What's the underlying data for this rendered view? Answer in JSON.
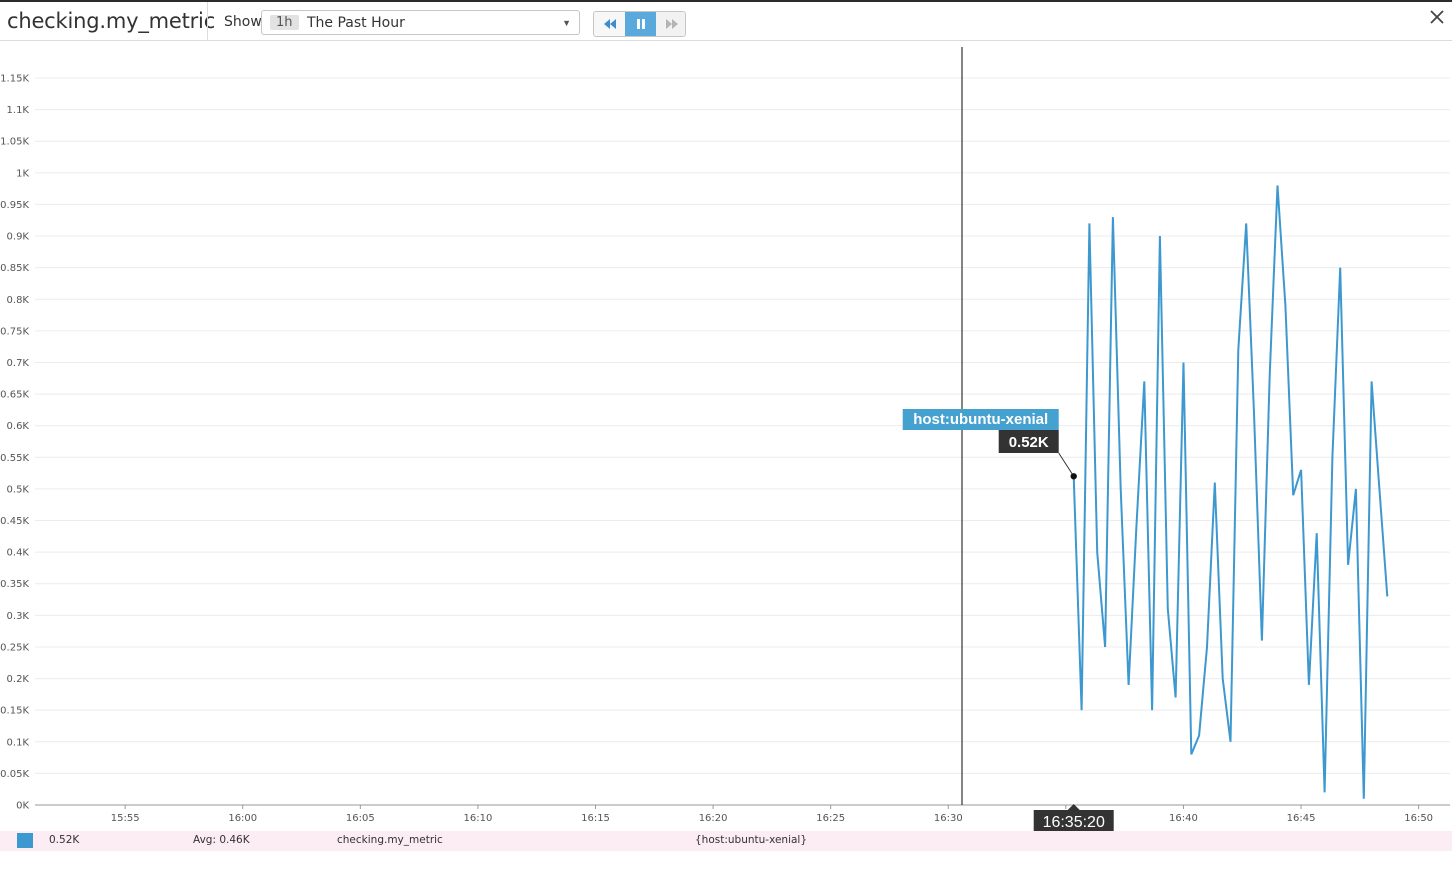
{
  "header": {
    "title": "checking.my_metric",
    "show_label": "Show",
    "range_badge": "1h",
    "range_text": "The Past Hour"
  },
  "icons": {
    "rewind": "rewind-icon",
    "pause": "pause-icon",
    "forward": "fast-forward-icon",
    "close": "close-icon"
  },
  "colors": {
    "series": "#3d98cf",
    "accent": "#5aa9dc",
    "tooltip_host_bg": "#45a1cf",
    "tooltip_value_bg": "#333333",
    "legend_bg": "#fcecf3"
  },
  "chart_data": {
    "type": "line",
    "title": "checking.my_metric",
    "ylim": [
      0,
      1.15
    ],
    "y_ticks": [
      {
        "v": 0,
        "label": "0K"
      },
      {
        "v": 0.05,
        "label": "0.05K"
      },
      {
        "v": 0.1,
        "label": "0.1K"
      },
      {
        "v": 0.15,
        "label": "0.15K"
      },
      {
        "v": 0.2,
        "label": "0.2K"
      },
      {
        "v": 0.25,
        "label": "0.25K"
      },
      {
        "v": 0.3,
        "label": "0.3K"
      },
      {
        "v": 0.35,
        "label": "0.35K"
      },
      {
        "v": 0.4,
        "label": "0.4K"
      },
      {
        "v": 0.45,
        "label": "0.45K"
      },
      {
        "v": 0.5,
        "label": "0.5K"
      },
      {
        "v": 0.55,
        "label": "0.55K"
      },
      {
        "v": 0.6,
        "label": "0.6K"
      },
      {
        "v": 0.65,
        "label": "0.65K"
      },
      {
        "v": 0.7,
        "label": "0.7K"
      },
      {
        "v": 0.75,
        "label": "0.75K"
      },
      {
        "v": 0.8,
        "label": "0.8K"
      },
      {
        "v": 0.85,
        "label": "0.85K"
      },
      {
        "v": 0.9,
        "label": "0.9K"
      },
      {
        "v": 0.95,
        "label": "0.95K"
      },
      {
        "v": 1.0,
        "label": "1K"
      },
      {
        "v": 1.05,
        "label": "1.05K"
      },
      {
        "v": 1.1,
        "label": "1.1K"
      },
      {
        "v": 1.15,
        "label": "1.15K"
      }
    ],
    "x_ticks": [
      "15:55",
      "16:00",
      "16:05",
      "16:10",
      "16:15",
      "16:20",
      "16:25",
      "16:30",
      "16:35",
      "16:40",
      "16:45",
      "16:50"
    ],
    "x_range": [
      "15:51:10",
      "16:51:20"
    ],
    "grid": true,
    "series": [
      {
        "color": "#3d98cf",
        "points": [
          [
            "16:35:20",
            0.52
          ],
          [
            "16:35:40",
            0.15
          ],
          [
            "16:36:00",
            0.92
          ],
          [
            "16:36:20",
            0.4
          ],
          [
            "16:36:40",
            0.25
          ],
          [
            "16:37:00",
            0.93
          ],
          [
            "16:37:20",
            0.5
          ],
          [
            "16:37:40",
            0.19
          ],
          [
            "16:38:00",
            0.44
          ],
          [
            "16:38:20",
            0.67
          ],
          [
            "16:38:40",
            0.15
          ],
          [
            "16:39:00",
            0.9
          ],
          [
            "16:39:20",
            0.31
          ],
          [
            "16:39:40",
            0.17
          ],
          [
            "16:40:00",
            0.7
          ],
          [
            "16:40:20",
            0.08
          ],
          [
            "16:40:40",
            0.11
          ],
          [
            "16:41:00",
            0.25
          ],
          [
            "16:41:20",
            0.51
          ],
          [
            "16:41:40",
            0.2
          ],
          [
            "16:42:00",
            0.1
          ],
          [
            "16:42:20",
            0.72
          ],
          [
            "16:42:40",
            0.92
          ],
          [
            "16:43:00",
            0.62
          ],
          [
            "16:43:20",
            0.26
          ],
          [
            "16:43:40",
            0.68
          ],
          [
            "16:44:00",
            0.98
          ],
          [
            "16:44:20",
            0.79
          ],
          [
            "16:44:40",
            0.49
          ],
          [
            "16:45:00",
            0.53
          ],
          [
            "16:45:20",
            0.19
          ],
          [
            "16:45:40",
            0.43
          ],
          [
            "16:46:00",
            0.02
          ],
          [
            "16:46:20",
            0.55
          ],
          [
            "16:46:40",
            0.85
          ],
          [
            "16:47:00",
            0.38
          ],
          [
            "16:47:20",
            0.5
          ],
          [
            "16:47:40",
            0.01
          ],
          [
            "16:48:00",
            0.67
          ],
          [
            "16:48:20",
            0.5
          ],
          [
            "16:48:40",
            0.33
          ]
        ]
      }
    ],
    "marker_time": "16:30:35",
    "hover": {
      "time": "16:35:20",
      "time_label": "16:35:20",
      "value": 0.52,
      "value_label": "0.52K",
      "host_label": "host:ubuntu-xenial"
    }
  },
  "legend": {
    "value": "0.52K",
    "avg": "Avg: 0.46K",
    "metric": "checking.my_metric",
    "scope": "{host:ubuntu-xenial}"
  }
}
